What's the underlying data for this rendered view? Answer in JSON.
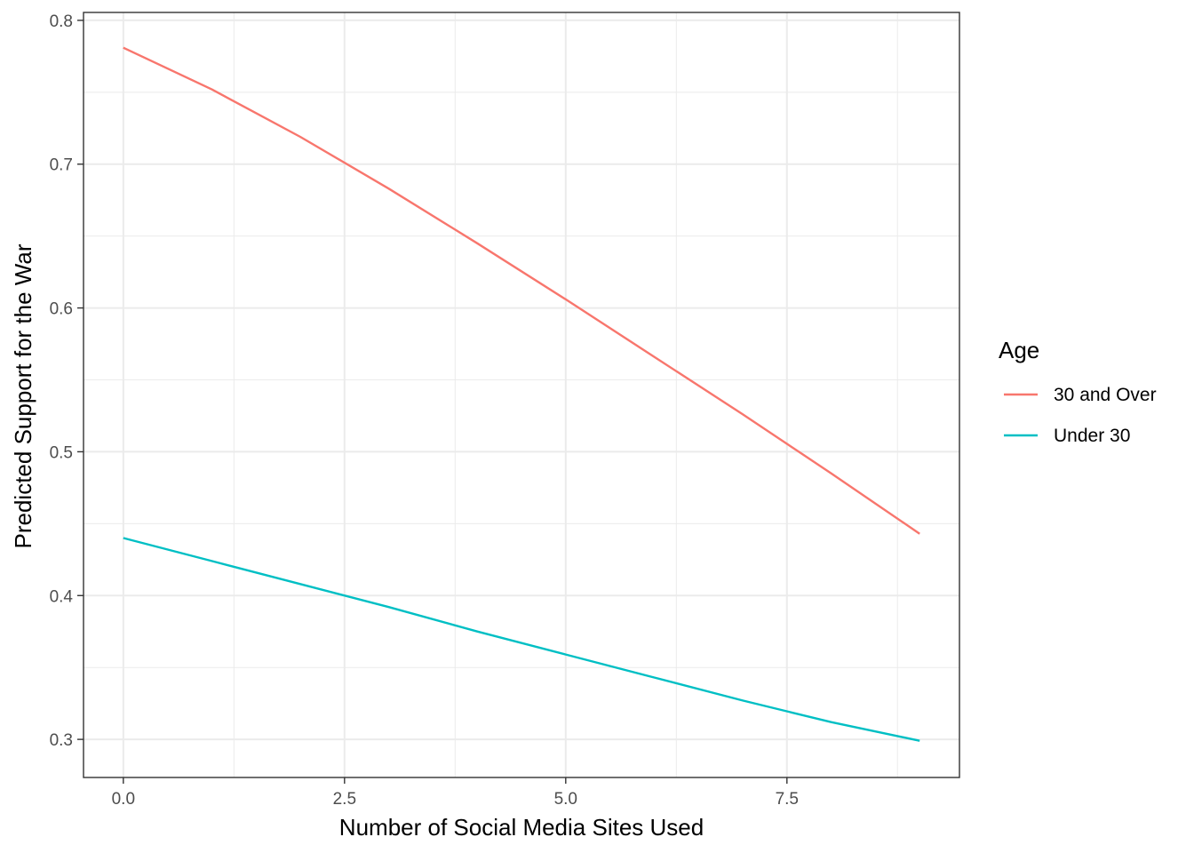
{
  "chart_data": {
    "type": "line",
    "xlabel": "Number of Social Media Sites Used",
    "ylabel": "Predicted Support for the War",
    "xlim": [
      -0.45,
      9.45
    ],
    "ylim": [
      0.2735,
      0.8055
    ],
    "x_ticks": [
      0.0,
      2.5,
      5.0,
      7.5
    ],
    "x_tick_labels": [
      "0.0",
      "2.5",
      "5.0",
      "7.5"
    ],
    "y_ticks": [
      0.3,
      0.4,
      0.5,
      0.6,
      0.7,
      0.8
    ],
    "y_tick_labels": [
      "0.3",
      "0.4",
      "0.5",
      "0.6",
      "0.7",
      "0.8"
    ],
    "grid": true,
    "legend": {
      "title": "Age",
      "position": "right"
    },
    "series": [
      {
        "name": "30 and Over",
        "color": "#F8766D",
        "x": [
          0,
          1,
          2,
          3,
          4,
          5,
          6,
          7,
          8,
          9
        ],
        "y": [
          0.781,
          0.752,
          0.719,
          0.683,
          0.645,
          0.606,
          0.566,
          0.526,
          0.485,
          0.443
        ]
      },
      {
        "name": "Under 30",
        "color": "#00BFC4",
        "x": [
          0,
          1,
          2,
          3,
          4,
          5,
          6,
          7,
          8,
          9
        ],
        "y": [
          0.44,
          0.424,
          0.408,
          0.392,
          0.375,
          0.359,
          0.343,
          0.327,
          0.312,
          0.299
        ]
      }
    ]
  }
}
